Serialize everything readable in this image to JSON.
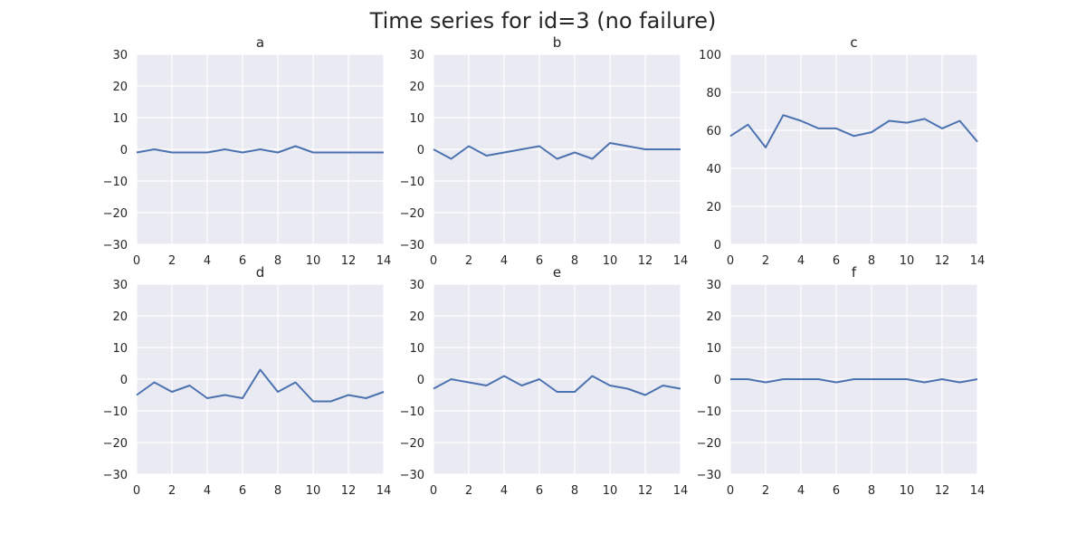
{
  "figure": {
    "title": "Time series for id=3 (no failure)",
    "background": "#ffffff"
  },
  "style": {
    "plot_background": "#EAEAF2",
    "grid_color": "#FFFFFF",
    "line_color": "#4C72B0",
    "text_color": "#262626"
  },
  "chart_data": [
    {
      "type": "line",
      "title": "a",
      "xlabel": "",
      "ylabel": "",
      "x": [
        0,
        1,
        2,
        3,
        4,
        5,
        6,
        7,
        8,
        9,
        10,
        11,
        12,
        13,
        14
      ],
      "series": [
        {
          "values": [
            -1,
            0,
            -1,
            -1,
            -1,
            0,
            -1,
            0,
            -1,
            1,
            -1,
            -1,
            -1,
            -1,
            -1
          ]
        }
      ],
      "xlim": [
        0,
        14
      ],
      "ylim": [
        -30,
        30
      ],
      "xticks": [
        0,
        2,
        4,
        6,
        8,
        10,
        12,
        14
      ],
      "yticks": [
        -30,
        -20,
        -10,
        0,
        10,
        20,
        30
      ],
      "xtick_labels": [
        "0",
        "2",
        "4",
        "6",
        "8",
        "10",
        "12",
        "14"
      ],
      "ytick_labels": [
        "−30",
        "−20",
        "−10",
        "0",
        "10",
        "20",
        "30"
      ],
      "grid": true
    },
    {
      "type": "line",
      "title": "b",
      "xlabel": "",
      "ylabel": "",
      "x": [
        0,
        1,
        2,
        3,
        4,
        5,
        6,
        7,
        8,
        9,
        10,
        11,
        12,
        13,
        14
      ],
      "series": [
        {
          "values": [
            0,
            -3,
            1,
            -2,
            -1,
            0,
            1,
            -3,
            -1,
            -3,
            2,
            1,
            0,
            0,
            0
          ]
        }
      ],
      "xlim": [
        0,
        14
      ],
      "ylim": [
        -30,
        30
      ],
      "xticks": [
        0,
        2,
        4,
        6,
        8,
        10,
        12,
        14
      ],
      "yticks": [
        -30,
        -20,
        -10,
        0,
        10,
        20,
        30
      ],
      "xtick_labels": [
        "0",
        "2",
        "4",
        "6",
        "8",
        "10",
        "12",
        "14"
      ],
      "ytick_labels": [
        "−30",
        "−20",
        "−10",
        "0",
        "10",
        "20",
        "30"
      ],
      "grid": true
    },
    {
      "type": "line",
      "title": "c",
      "xlabel": "",
      "ylabel": "",
      "x": [
        0,
        1,
        2,
        3,
        4,
        5,
        6,
        7,
        8,
        9,
        10,
        11,
        12,
        13,
        14
      ],
      "series": [
        {
          "values": [
            57,
            63,
            51,
            68,
            65,
            61,
            61,
            57,
            59,
            65,
            64,
            66,
            61,
            65,
            54
          ]
        }
      ],
      "xlim": [
        0,
        14
      ],
      "ylim": [
        0,
        100
      ],
      "xticks": [
        0,
        2,
        4,
        6,
        8,
        10,
        12,
        14
      ],
      "yticks": [
        0,
        20,
        40,
        60,
        80,
        100
      ],
      "xtick_labels": [
        "0",
        "2",
        "4",
        "6",
        "8",
        "10",
        "12",
        "14"
      ],
      "ytick_labels": [
        "0",
        "20",
        "40",
        "60",
        "80",
        "100"
      ],
      "grid": true
    },
    {
      "type": "line",
      "title": "d",
      "xlabel": "",
      "ylabel": "",
      "x": [
        0,
        1,
        2,
        3,
        4,
        5,
        6,
        7,
        8,
        9,
        10,
        11,
        12,
        13,
        14
      ],
      "series": [
        {
          "values": [
            -5,
            -1,
            -4,
            -2,
            -6,
            -5,
            -6,
            3,
            -4,
            -1,
            -7,
            -7,
            -5,
            -6,
            -4
          ]
        }
      ],
      "xlim": [
        0,
        14
      ],
      "ylim": [
        -30,
        30
      ],
      "xticks": [
        0,
        2,
        4,
        6,
        8,
        10,
        12,
        14
      ],
      "yticks": [
        -30,
        -20,
        -10,
        0,
        10,
        20,
        30
      ],
      "xtick_labels": [
        "0",
        "2",
        "4",
        "6",
        "8",
        "10",
        "12",
        "14"
      ],
      "ytick_labels": [
        "−30",
        "−20",
        "−10",
        "0",
        "10",
        "20",
        "30"
      ],
      "grid": true
    },
    {
      "type": "line",
      "title": "e",
      "xlabel": "",
      "ylabel": "",
      "x": [
        0,
        1,
        2,
        3,
        4,
        5,
        6,
        7,
        8,
        9,
        10,
        11,
        12,
        13,
        14
      ],
      "series": [
        {
          "values": [
            -3,
            0,
            -1,
            -2,
            1,
            -2,
            0,
            -4,
            -4,
            1,
            -2,
            -3,
            -5,
            -2,
            -3
          ]
        }
      ],
      "xlim": [
        0,
        14
      ],
      "ylim": [
        -30,
        30
      ],
      "xticks": [
        0,
        2,
        4,
        6,
        8,
        10,
        12,
        14
      ],
      "yticks": [
        -30,
        -20,
        -10,
        0,
        10,
        20,
        30
      ],
      "xtick_labels": [
        "0",
        "2",
        "4",
        "6",
        "8",
        "10",
        "12",
        "14"
      ],
      "ytick_labels": [
        "−30",
        "−20",
        "−10",
        "0",
        "10",
        "20",
        "30"
      ],
      "grid": true
    },
    {
      "type": "line",
      "title": "f",
      "xlabel": "",
      "ylabel": "",
      "x": [
        0,
        1,
        2,
        3,
        4,
        5,
        6,
        7,
        8,
        9,
        10,
        11,
        12,
        13,
        14
      ],
      "series": [
        {
          "values": [
            0,
            0,
            -1,
            0,
            0,
            0,
            -1,
            0,
            0,
            0,
            0,
            -1,
            0,
            -1,
            0
          ]
        }
      ],
      "xlim": [
        0,
        14
      ],
      "ylim": [
        -30,
        30
      ],
      "xticks": [
        0,
        2,
        4,
        6,
        8,
        10,
        12,
        14
      ],
      "yticks": [
        -30,
        -20,
        -10,
        0,
        10,
        20,
        30
      ],
      "xtick_labels": [
        "0",
        "2",
        "4",
        "6",
        "8",
        "10",
        "12",
        "14"
      ],
      "ytick_labels": [
        "−30",
        "−20",
        "−10",
        "0",
        "10",
        "20",
        "30"
      ],
      "grid": true
    }
  ]
}
